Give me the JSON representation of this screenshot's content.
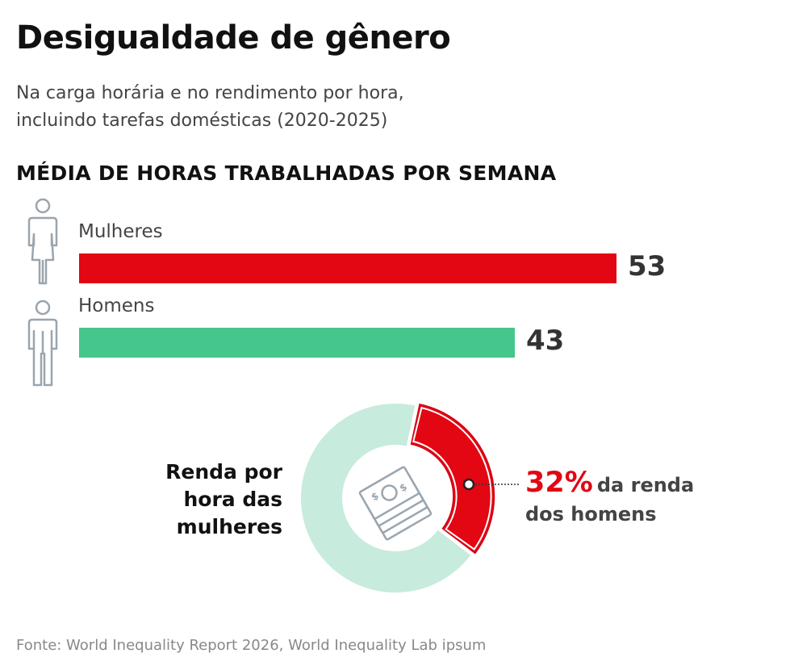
{
  "title": "Desigualdade de gênero",
  "subtitle": {
    "line1": "Na carga horária e no rendimento por hora,",
    "line2": "incluindo tarefas domésticas (2020-2025)"
  },
  "section_title": "MÉDIA DE HORAS TRABALHADAS POR SEMANA",
  "donut": {
    "left_label": [
      "Renda por",
      "hora das",
      "mulheres"
    ],
    "pct_label": "32%",
    "pct_text_1": "da renda",
    "pct_text_2": "dos homens",
    "icon": "money-bills-icon"
  },
  "source": "Fonte: World Inequality Report 2026, World Inequality Lab ipsum",
  "colors": {
    "women": "#e30613",
    "men": "#45c68c",
    "donut_rest": "#c7ebdd",
    "icon_stroke": "#9aa5ae"
  },
  "chart_data": [
    {
      "type": "bar",
      "orientation": "horizontal",
      "title": "MÉDIA DE HORAS TRABALHADAS POR SEMANA",
      "categories": [
        "Mulheres",
        "Homens"
      ],
      "values": [
        53,
        43
      ],
      "value_labels": [
        "53",
        "43"
      ],
      "icons": [
        "woman-icon",
        "man-icon"
      ],
      "colors": [
        "#e30613",
        "#45c68c"
      ],
      "xlim": [
        0,
        53
      ]
    },
    {
      "type": "pie",
      "variant": "donut",
      "title": "Renda por hora das mulheres",
      "slices": [
        {
          "label": "32%",
          "value": 32,
          "color": "#e30613"
        },
        {
          "label": "",
          "value": 68,
          "color": "#c7ebdd"
        }
      ]
    }
  ]
}
